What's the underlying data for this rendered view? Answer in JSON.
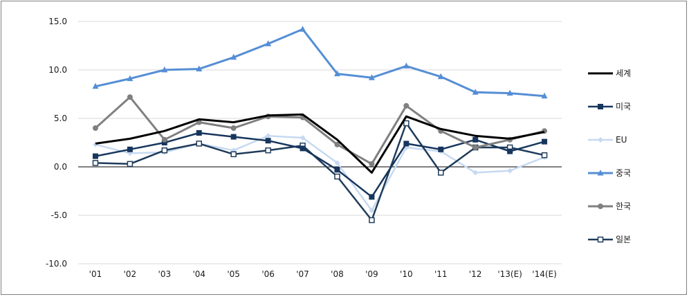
{
  "chart_data": {
    "type": "line",
    "title": "",
    "xlabel": "",
    "ylabel": "",
    "categories": [
      "'01",
      "'02",
      "'03",
      "'04",
      "'05",
      "'06",
      "'07",
      "'08",
      "'09",
      "'10",
      "'11",
      "'12",
      "'13(E)",
      "'14(E)"
    ],
    "y_ticks": [
      "15.0",
      "10.0",
      "5.0",
      "0.0",
      "-5.0",
      "-10.0"
    ],
    "ylim": [
      -10,
      15
    ],
    "grid": true,
    "legend_position": "right",
    "series": [
      {
        "name": "세계",
        "color": "#000000",
        "marker": "none",
        "width": 3,
        "values": [
          2.4,
          2.9,
          3.7,
          4.9,
          4.6,
          5.3,
          5.4,
          2.8,
          -0.6,
          5.2,
          3.9,
          3.2,
          2.9,
          3.6
        ]
      },
      {
        "name": "미국",
        "color": "#17365d",
        "marker": "square",
        "width": 2.5,
        "values": [
          1.1,
          1.8,
          2.5,
          3.5,
          3.1,
          2.7,
          1.9,
          -0.3,
          -3.1,
          2.4,
          1.8,
          2.8,
          1.6,
          2.6
        ]
      },
      {
        "name": "EU",
        "color": "#c6d9f1",
        "marker": "diamond",
        "width": 2.5,
        "values": [
          2.3,
          1.4,
          1.5,
          2.4,
          1.7,
          3.2,
          3.0,
          0.4,
          -4.5,
          2.0,
          1.6,
          -0.6,
          -0.4,
          1.0
        ]
      },
      {
        "name": "중국",
        "color": "#558ed5",
        "marker": "triangle",
        "width": 3,
        "values": [
          8.3,
          9.1,
          10.0,
          10.1,
          11.3,
          12.7,
          14.2,
          9.6,
          9.2,
          10.4,
          9.3,
          7.7,
          7.6,
          7.3
        ]
      },
      {
        "name": "한국",
        "color": "#808080",
        "marker": "circle",
        "width": 3,
        "values": [
          4.0,
          7.2,
          2.8,
          4.6,
          4.0,
          5.2,
          5.1,
          2.3,
          0.3,
          6.3,
          3.7,
          2.0,
          2.8,
          3.7
        ]
      },
      {
        "name": "일본",
        "color": "#1f3b5a",
        "marker": "open-square",
        "width": 2.5,
        "values": [
          0.4,
          0.3,
          1.7,
          2.4,
          1.3,
          1.7,
          2.2,
          -1.0,
          -5.5,
          4.5,
          -0.6,
          2.0,
          2.0,
          1.2
        ]
      }
    ]
  }
}
